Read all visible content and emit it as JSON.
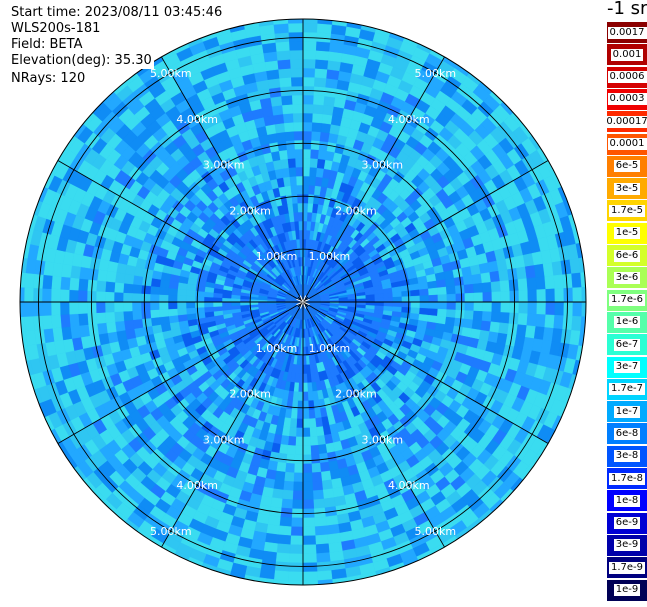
{
  "header": {
    "start_time": "Start time: 2023/08/11 03:45:46",
    "instrument": "WLS200s-181",
    "field": "Field: BETA",
    "elevation": "Elevation(deg): 35.30",
    "nrays": "NRays: 120"
  },
  "colorbar": {
    "unit": "-1 sr",
    "labels": [
      "0.0017",
      "0.001",
      "0.0006",
      "0.0003",
      "0.00017",
      "0.0001",
      "6e-5",
      "3e-5",
      "1.7e-5",
      "1e-5",
      "6e-6",
      "3e-6",
      "1.7e-6",
      "1e-6",
      "6e-7",
      "3e-7",
      "1.7e-7",
      "1e-7",
      "6e-8",
      "3e-8",
      "1.7e-8",
      "1e-8",
      "6e-9",
      "3e-9",
      "1.7e-9",
      "1e-9"
    ],
    "colors": [
      "#8b0000",
      "#b00000",
      "#d40000",
      "#f00000",
      "#ff2a00",
      "#ff5500",
      "#ff7f00",
      "#ffaa00",
      "#ffd400",
      "#ffff00",
      "#d4ff2a",
      "#aaff55",
      "#7fff7f",
      "#55ffaa",
      "#2affd4",
      "#00ffff",
      "#00d4ff",
      "#00aaff",
      "#007fff",
      "#0055ff",
      "#002aff",
      "#0000ff",
      "#0000d4",
      "#0000aa",
      "#00007f",
      "#000055"
    ]
  },
  "ppi": {
    "range_unit": "km",
    "range_rings_km": [
      1,
      2,
      3,
      4,
      5
    ],
    "ring_labels": [
      "1.00km",
      "2.00km",
      "3.00km",
      "4.00km",
      "5.00km"
    ],
    "n_rays": 120,
    "spoke_angles_deg": [
      0,
      30,
      60,
      90,
      120,
      150,
      180,
      210,
      240,
      270,
      300,
      330
    ],
    "palette": [
      "#0a5ef0",
      "#1e7bff",
      "#0f8cf5",
      "#22a8ff",
      "#2fc6f2",
      "#3adcf0"
    ]
  }
}
